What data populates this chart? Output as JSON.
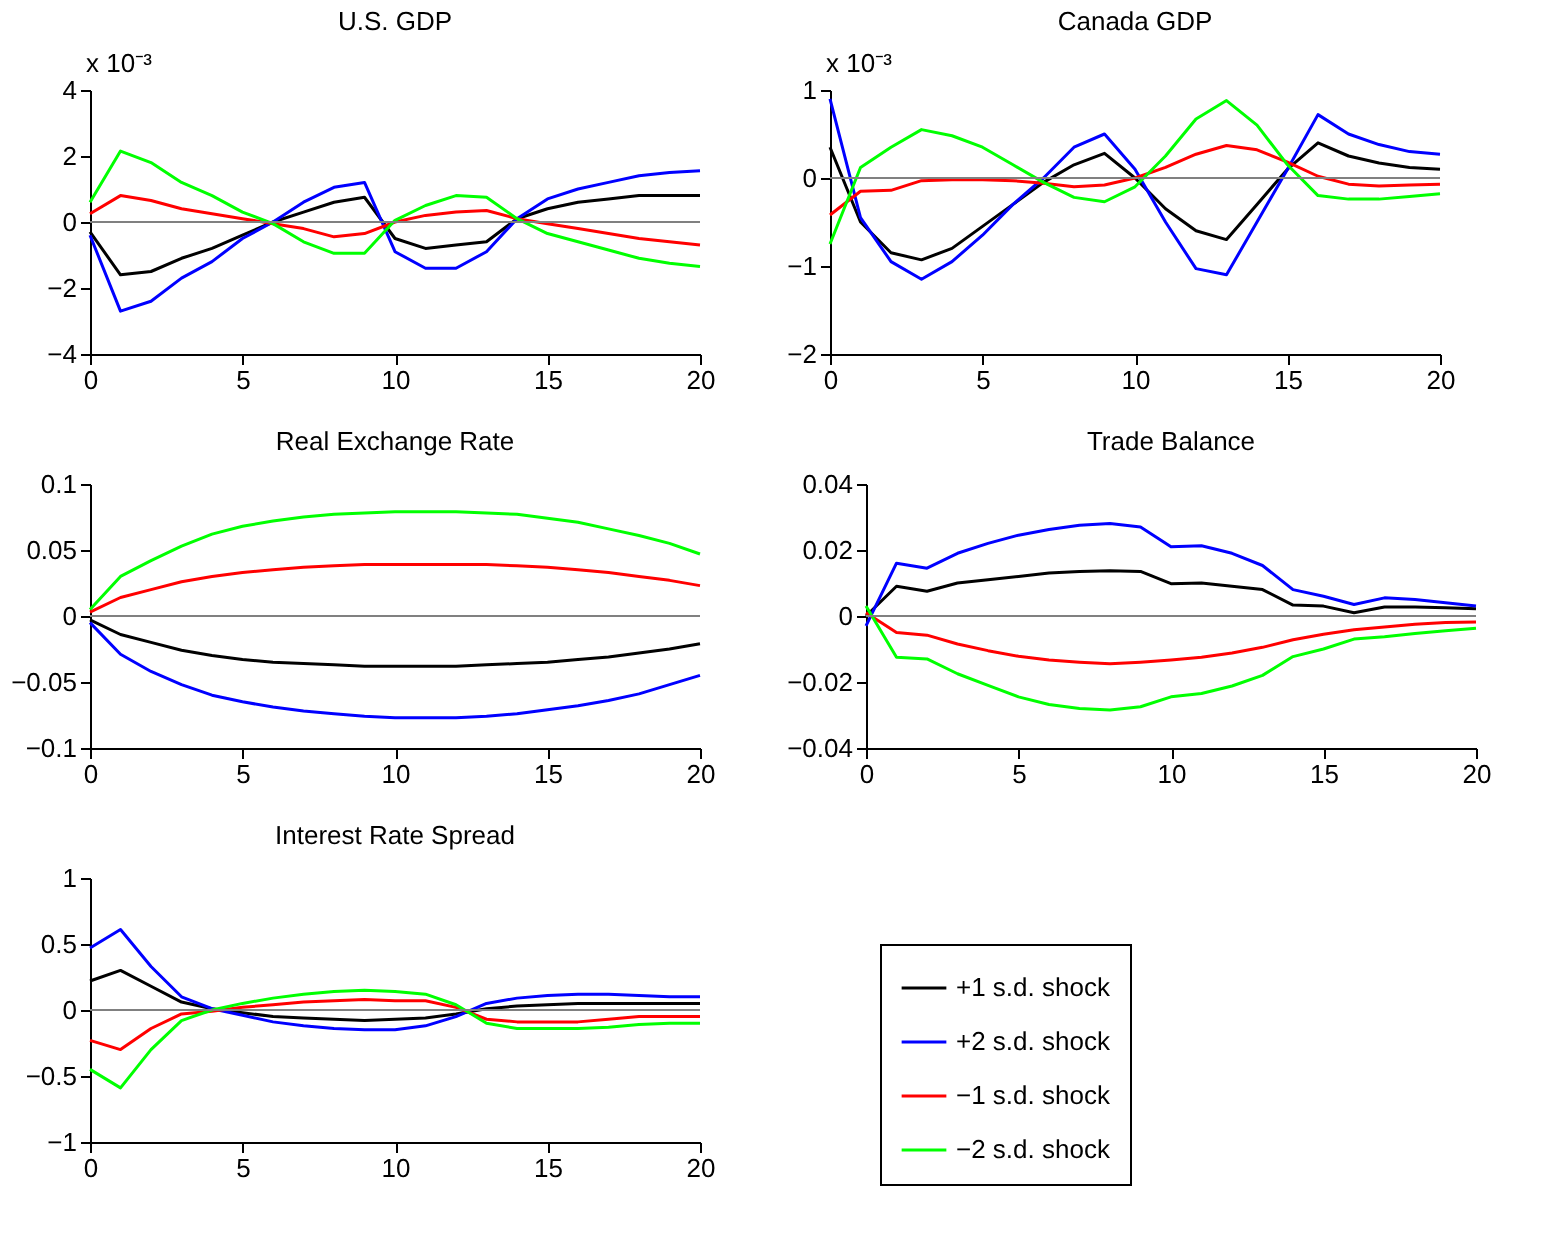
{
  "chart_data": [
    {
      "type": "line",
      "title": "U.S. GDP",
      "annotations": [
        "x 10⁻³"
      ],
      "x": [
        0,
        1,
        2,
        3,
        4,
        5,
        6,
        7,
        8,
        9,
        10,
        11,
        12,
        13,
        14,
        15,
        16,
        17,
        18,
        19,
        20
      ],
      "xlim": [
        0,
        20
      ],
      "xticks": [
        0,
        5,
        10,
        15,
        20
      ],
      "ylim": [
        -4,
        4
      ],
      "yticks": [
        -4,
        -2,
        0,
        2,
        4
      ],
      "grid": false,
      "legend": false,
      "ref_lines": [
        {
          "axis": "y",
          "value": 0,
          "color": "#808080"
        }
      ],
      "series": [
        {
          "color": "#000000",
          "values": [
            -0.3,
            -1.6,
            -1.5,
            -1.1,
            -0.8,
            -0.4,
            0,
            0.3,
            0.6,
            0.75,
            -0.5,
            -0.8,
            -0.7,
            -0.6,
            0.1,
            0.4,
            0.6,
            0.7,
            0.8,
            0.8,
            0.8
          ]
        },
        {
          "color": "#0000ff",
          "values": [
            -0.4,
            -2.7,
            -2.4,
            -1.7,
            -1.2,
            -0.5,
            0,
            0.6,
            1.05,
            1.2,
            -0.9,
            -1.4,
            -1.4,
            -0.9,
            0.1,
            0.7,
            1.0,
            1.2,
            1.4,
            1.5,
            1.55
          ]
        },
        {
          "color": "#ff0000",
          "values": [
            0.25,
            0.8,
            0.65,
            0.4,
            0.25,
            0.1,
            -0.05,
            -0.2,
            -0.45,
            -0.35,
            0,
            0.2,
            0.3,
            0.35,
            0.1,
            -0.05,
            -0.2,
            -0.35,
            -0.5,
            -0.6,
            -0.7
          ]
        },
        {
          "color": "#00ff00",
          "values": [
            0.6,
            2.15,
            1.8,
            1.2,
            0.8,
            0.3,
            -0.05,
            -0.6,
            -0.95,
            -0.95,
            0.05,
            0.5,
            0.8,
            0.75,
            0.1,
            -0.35,
            -0.6,
            -0.85,
            -1.1,
            -1.25,
            -1.35
          ]
        }
      ]
    },
    {
      "type": "line",
      "title": "Canada GDP",
      "annotations": [
        "x 10⁻³"
      ],
      "x": [
        0,
        1,
        2,
        3,
        4,
        5,
        6,
        7,
        8,
        9,
        10,
        11,
        12,
        13,
        14,
        15,
        16,
        17,
        18,
        19,
        20
      ],
      "xlim": [
        0,
        20
      ],
      "xticks": [
        0,
        5,
        10,
        15,
        20
      ],
      "ylim": [
        -2,
        1
      ],
      "yticks": [
        -2,
        -1,
        0,
        1
      ],
      "grid": false,
      "legend": false,
      "ref_lines": [
        {
          "axis": "y",
          "value": 0,
          "color": "#808080"
        }
      ],
      "series": [
        {
          "color": "#000000",
          "values": [
            0.35,
            -0.5,
            -0.85,
            -0.93,
            -0.8,
            -0.55,
            -0.3,
            -0.05,
            0.15,
            0.28,
            0,
            -0.35,
            -0.6,
            -0.7,
            -0.3,
            0.1,
            0.4,
            0.25,
            0.17,
            0.12,
            0.1
          ]
        },
        {
          "color": "#0000ff",
          "values": [
            0.9,
            -0.45,
            -0.95,
            -1.15,
            -0.95,
            -0.65,
            -0.3,
            0,
            0.35,
            0.5,
            0.1,
            -0.5,
            -1.03,
            -1.1,
            -0.5,
            0.1,
            0.72,
            0.5,
            0.38,
            0.3,
            0.27
          ]
        },
        {
          "color": "#ff0000",
          "values": [
            -0.42,
            -0.15,
            -0.14,
            -0.03,
            -0.02,
            -0.02,
            -0.03,
            -0.06,
            -0.1,
            -0.08,
            0,
            0.12,
            0.27,
            0.37,
            0.32,
            0.18,
            0.02,
            -0.07,
            -0.09,
            -0.08,
            -0.07
          ]
        },
        {
          "color": "#00ff00",
          "values": [
            -0.75,
            0.12,
            0.35,
            0.55,
            0.48,
            0.35,
            0.15,
            -0.05,
            -0.22,
            -0.27,
            -0.1,
            0.25,
            0.67,
            0.88,
            0.6,
            0.15,
            -0.2,
            -0.24,
            -0.24,
            -0.21,
            -0.18
          ]
        }
      ]
    },
    {
      "type": "line",
      "title": "Real Exchange Rate",
      "x": [
        0,
        1,
        2,
        3,
        4,
        5,
        6,
        7,
        8,
        9,
        10,
        11,
        12,
        13,
        14,
        15,
        16,
        17,
        18,
        19,
        20
      ],
      "xlim": [
        0,
        20
      ],
      "xticks": [
        0,
        5,
        10,
        15,
        20
      ],
      "ylim": [
        -0.1,
        0.1
      ],
      "yticks": [
        -0.1,
        -0.05,
        0,
        0.05,
        0.1
      ],
      "grid": false,
      "legend": false,
      "ref_lines": [
        {
          "axis": "y",
          "value": 0,
          "color": "#808080"
        }
      ],
      "series": [
        {
          "color": "#000000",
          "values": [
            -0.003,
            -0.014,
            -0.02,
            -0.026,
            -0.03,
            -0.033,
            -0.035,
            -0.036,
            -0.037,
            -0.038,
            -0.038,
            -0.038,
            -0.038,
            -0.037,
            -0.036,
            -0.035,
            -0.033,
            -0.031,
            -0.028,
            -0.025,
            -0.021
          ]
        },
        {
          "color": "#0000ff",
          "values": [
            -0.005,
            -0.029,
            -0.042,
            -0.052,
            -0.06,
            -0.065,
            -0.069,
            -0.072,
            -0.074,
            -0.076,
            -0.077,
            -0.077,
            -0.077,
            -0.076,
            -0.074,
            -0.071,
            -0.068,
            -0.064,
            -0.059,
            -0.052,
            -0.045
          ]
        },
        {
          "color": "#ff0000",
          "values": [
            0.003,
            0.014,
            0.02,
            0.026,
            0.03,
            0.033,
            0.035,
            0.037,
            0.038,
            0.039,
            0.039,
            0.039,
            0.039,
            0.039,
            0.038,
            0.037,
            0.035,
            0.033,
            0.03,
            0.027,
            0.023
          ]
        },
        {
          "color": "#00ff00",
          "values": [
            0.005,
            0.03,
            0.042,
            0.053,
            0.062,
            0.068,
            0.072,
            0.075,
            0.077,
            0.078,
            0.079,
            0.079,
            0.079,
            0.078,
            0.077,
            0.074,
            0.071,
            0.066,
            0.061,
            0.055,
            0.047
          ]
        }
      ]
    },
    {
      "type": "line",
      "title": "Trade Balance",
      "x": [
        0,
        1,
        2,
        3,
        4,
        5,
        6,
        7,
        8,
        9,
        10,
        11,
        12,
        13,
        14,
        15,
        16,
        17,
        18,
        19,
        20
      ],
      "xlim": [
        0,
        20
      ],
      "xticks": [
        0,
        5,
        10,
        15,
        20
      ],
      "ylim": [
        -0.04,
        0.04
      ],
      "yticks": [
        -0.04,
        -0.02,
        0,
        0.02,
        0.04
      ],
      "grid": false,
      "legend": false,
      "ref_lines": [
        {
          "axis": "y",
          "value": 0,
          "color": "#808080"
        }
      ],
      "series": [
        {
          "color": "#000000",
          "values": [
            0,
            0.009,
            0.0075,
            0.01,
            0.011,
            0.012,
            0.013,
            0.0135,
            0.0137,
            0.0135,
            0.0098,
            0.01,
            0.009,
            0.008,
            0.0033,
            0.003,
            0.001,
            0.0027,
            0.0027,
            0.0025,
            0.0022
          ]
        },
        {
          "color": "#0000ff",
          "values": [
            -0.003,
            0.016,
            0.0145,
            0.019,
            0.022,
            0.0245,
            0.0262,
            0.0275,
            0.028,
            0.027,
            0.021,
            0.0213,
            0.019,
            0.0153,
            0.008,
            0.006,
            0.0035,
            0.0055,
            0.005,
            0.004,
            0.003
          ]
        },
        {
          "color": "#ff0000",
          "values": [
            0.001,
            -0.005,
            -0.0058,
            -0.0085,
            -0.0105,
            -0.0122,
            -0.0133,
            -0.014,
            -0.0145,
            -0.014,
            -0.0133,
            -0.0125,
            -0.0112,
            -0.0095,
            -0.0072,
            -0.0055,
            -0.0042,
            -0.0033,
            -0.0025,
            -0.002,
            -0.0018
          ]
        },
        {
          "color": "#00ff00",
          "values": [
            0.003,
            -0.0125,
            -0.013,
            -0.0175,
            -0.021,
            -0.0245,
            -0.0268,
            -0.028,
            -0.0285,
            -0.0275,
            -0.0245,
            -0.0235,
            -0.0212,
            -0.018,
            -0.0123,
            -0.01,
            -0.007,
            -0.0063,
            -0.0053,
            -0.0045,
            -0.0037
          ]
        }
      ]
    },
    {
      "type": "line",
      "title": "Interest Rate Spread",
      "x": [
        0,
        1,
        2,
        3,
        4,
        5,
        6,
        7,
        8,
        9,
        10,
        11,
        12,
        13,
        14,
        15,
        16,
        17,
        18,
        19,
        20
      ],
      "xlim": [
        0,
        20
      ],
      "xticks": [
        0,
        5,
        10,
        15,
        20
      ],
      "ylim": [
        -1,
        1
      ],
      "yticks": [
        -1,
        -0.5,
        0,
        0.5,
        1
      ],
      "grid": false,
      "legend": "right",
      "ref_lines": [
        {
          "axis": "y",
          "value": 0,
          "color": "#808080"
        }
      ],
      "series": [
        {
          "name": "+1 s.d. shock",
          "color": "#000000",
          "values": [
            0.22,
            0.3,
            0.18,
            0.06,
            0.01,
            -0.02,
            -0.05,
            -0.06,
            -0.07,
            -0.08,
            -0.07,
            -0.06,
            -0.03,
            0.01,
            0.03,
            0.04,
            0.05,
            0.05,
            0.05,
            0.05,
            0.05
          ]
        },
        {
          "name": "+2 s.d. shock",
          "color": "#0000ff",
          "values": [
            0.47,
            0.61,
            0.33,
            0.1,
            0.01,
            -0.04,
            -0.09,
            -0.12,
            -0.14,
            -0.15,
            -0.15,
            -0.12,
            -0.05,
            0.05,
            0.09,
            0.11,
            0.12,
            0.12,
            0.11,
            0.1,
            0.1
          ]
        },
        {
          "name": "−1 s.d. shock",
          "color": "#ff0000",
          "values": [
            -0.23,
            -0.3,
            -0.14,
            -0.03,
            -0.01,
            0.02,
            0.04,
            0.06,
            0.07,
            0.08,
            0.07,
            0.07,
            0.02,
            -0.07,
            -0.09,
            -0.09,
            -0.09,
            -0.07,
            -0.05,
            -0.05,
            -0.05
          ]
        },
        {
          "name": "−2 s.d. shock",
          "color": "#00ff00",
          "values": [
            -0.45,
            -0.59,
            -0.3,
            -0.08,
            0,
            0.05,
            0.09,
            0.12,
            0.14,
            0.15,
            0.14,
            0.12,
            0.04,
            -0.1,
            -0.14,
            -0.14,
            -0.14,
            -0.13,
            -0.11,
            -0.1,
            -0.1
          ]
        }
      ]
    }
  ]
}
